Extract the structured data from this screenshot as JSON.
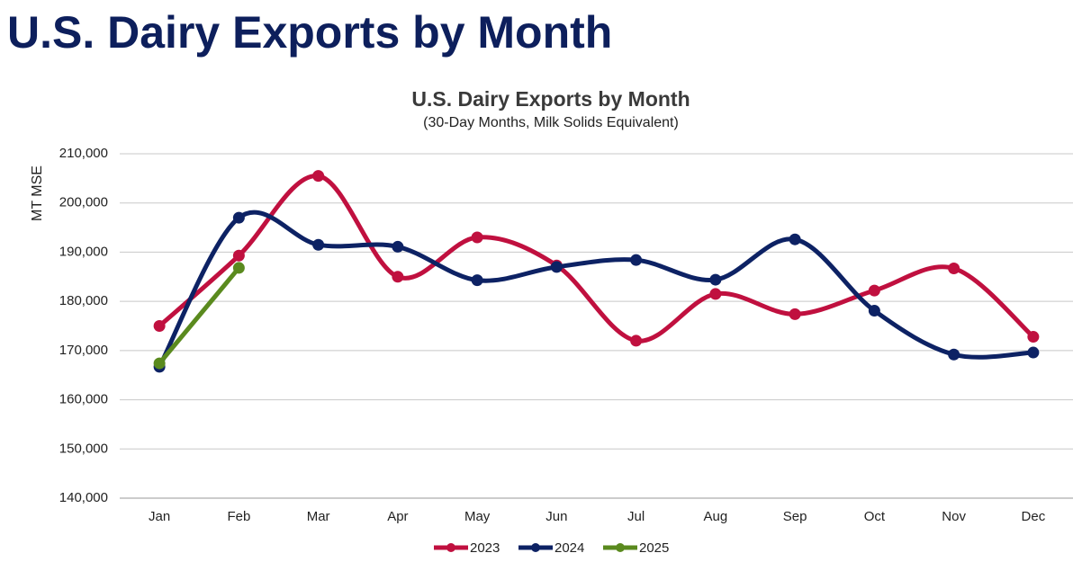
{
  "page_title": "U.S. Dairy Exports by Month",
  "chart_data": {
    "type": "line",
    "smooth": true,
    "title": "U.S. Dairy Exports by Month",
    "subtitle": "(30-Day Months, Milk Solids Equivalent)",
    "y_label": "MT MSE",
    "categories": [
      "Jan",
      "Feb",
      "Mar",
      "Apr",
      "May",
      "Jun",
      "Jul",
      "Aug",
      "Sep",
      "Oct",
      "Nov",
      "Dec"
    ],
    "series": [
      {
        "name": "2023",
        "color": "#c0103f",
        "values": [
          175000,
          189300,
          205500,
          185000,
          193000,
          187300,
          172000,
          181500,
          177400,
          182200,
          186700,
          172800
        ]
      },
      {
        "name": "2024",
        "color": "#0d2264",
        "values": [
          166700,
          197000,
          191500,
          191100,
          184300,
          187000,
          188400,
          184400,
          192600,
          178100,
          169200,
          169600
        ]
      },
      {
        "name": "2025",
        "color": "#5a8a1e",
        "values": [
          167400,
          186800,
          null,
          null,
          null,
          null,
          null,
          null,
          null,
          null,
          null,
          null
        ]
      }
    ],
    "ylim": [
      140000,
      210000
    ],
    "yticks": [
      {
        "value": 140000,
        "label": "140,000"
      },
      {
        "value": 150000,
        "label": "150,000"
      },
      {
        "value": 160000,
        "label": "160,000"
      },
      {
        "value": 170000,
        "label": "170,000"
      },
      {
        "value": 180000,
        "label": "180,000"
      },
      {
        "value": 190000,
        "label": "190,000"
      },
      {
        "value": 200000,
        "label": "200,000"
      },
      {
        "value": 210000,
        "label": "210,000"
      }
    ],
    "grid": true,
    "legend": "bottom"
  }
}
